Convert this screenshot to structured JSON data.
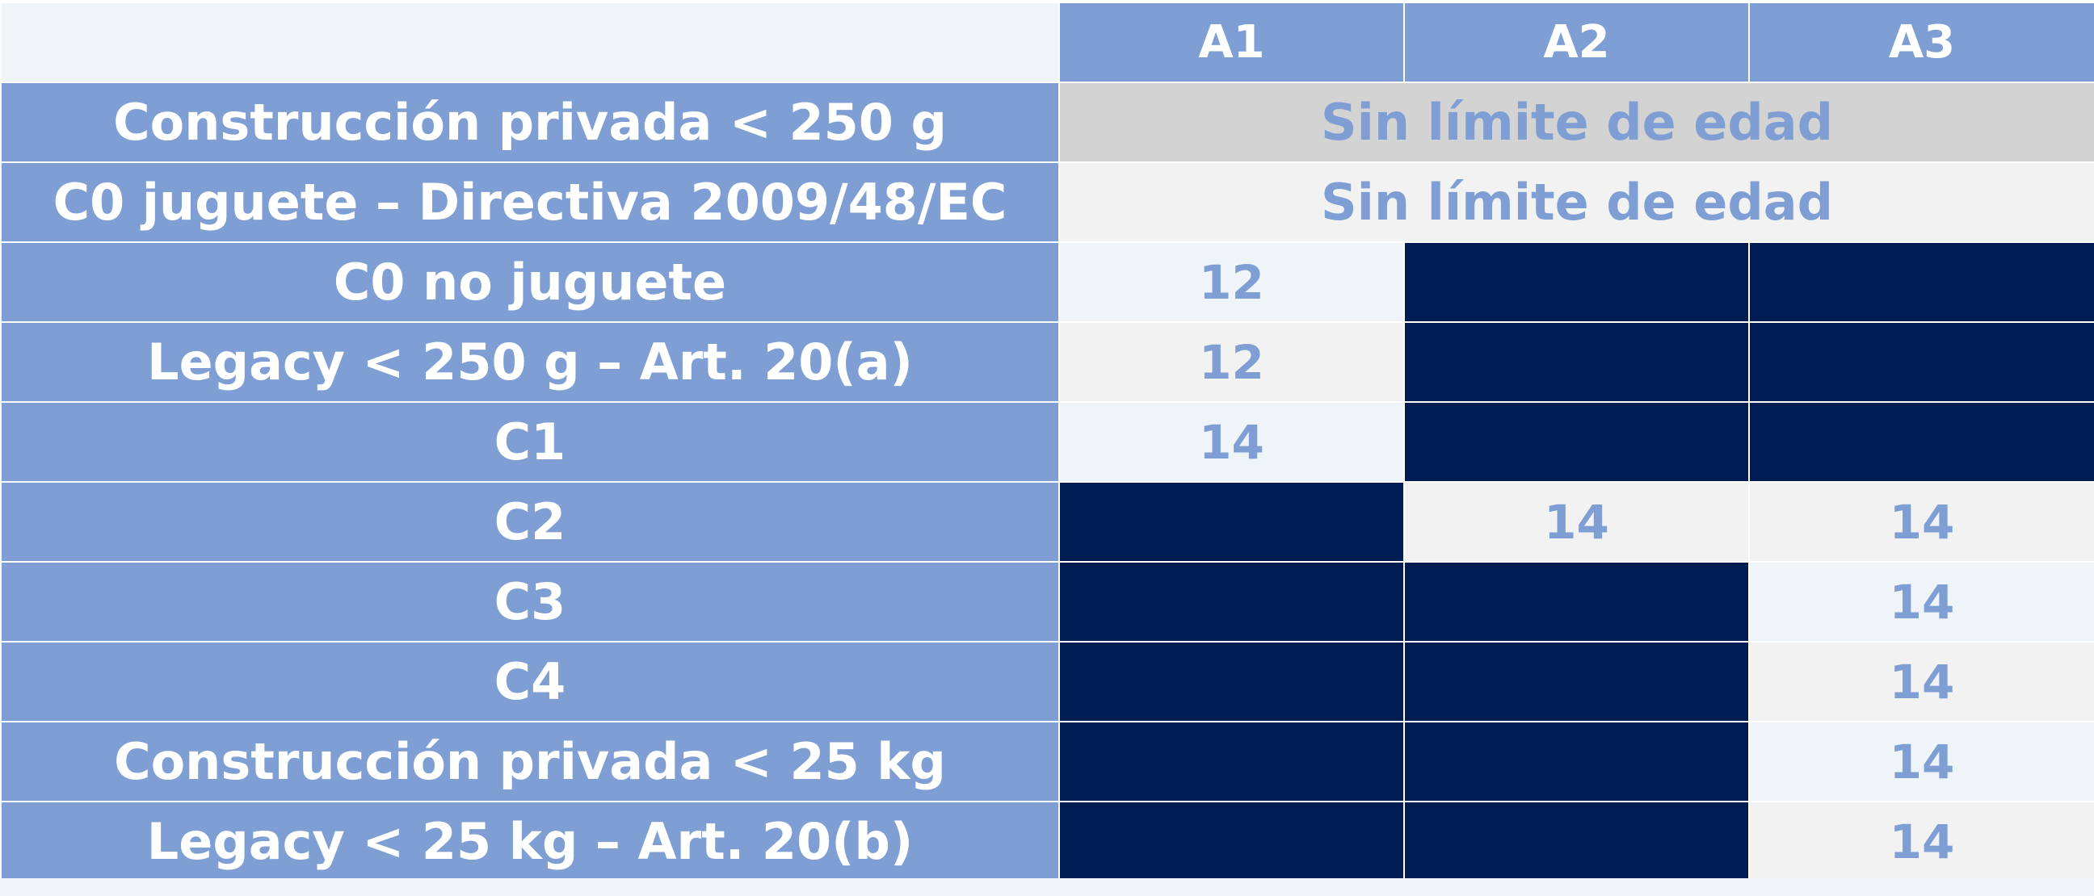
{
  "columns": [
    "A1",
    "A2",
    "A3"
  ],
  "span_text": "Sin límite de edad",
  "rows": [
    {
      "label": "Construcción privada < 250 g",
      "a1": "",
      "a2": "",
      "a3": ""
    },
    {
      "label": "C0 juguete – Directiva 2009/48/EC",
      "a1": "",
      "a2": "",
      "a3": ""
    },
    {
      "label": "C0 no juguete",
      "a1": "12",
      "a2": "",
      "a3": ""
    },
    {
      "label": "Legacy < 250 g – Art. 20(a)",
      "a1": "12",
      "a2": "",
      "a3": ""
    },
    {
      "label": "C1",
      "a1": "14",
      "a2": "",
      "a3": ""
    },
    {
      "label": "C2",
      "a1": "",
      "a2": "14",
      "a3": "14"
    },
    {
      "label": "C3",
      "a1": "",
      "a2": "",
      "a3": "14"
    },
    {
      "label": "C4",
      "a1": "",
      "a2": "",
      "a3": "14"
    },
    {
      "label": "Construcción privada < 25 kg",
      "a1": "",
      "a2": "",
      "a3": "14"
    },
    {
      "label": "Legacy < 25 kg – Art. 20(b)",
      "a1": "",
      "a2": "",
      "a3": "14"
    }
  ],
  "colors": {
    "header_blue": "#7f9fd4",
    "dark_navy": "#001d53",
    "light_blue": "#eef4f8",
    "light_grey": "#f2f2f2",
    "mid_grey": "#d3d3d3",
    "white_text": "#ffffff"
  }
}
